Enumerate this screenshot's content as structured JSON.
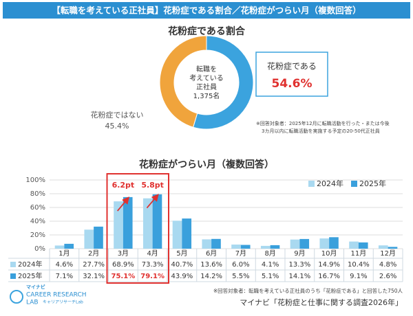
{
  "title": "【転職を考えている正社員】花粉症である割合／花粉症がつらい月（複数回答）",
  "footer_note": "※回答対象者：転職を考えている正社員のうち「花粉症である」と回答した750人",
  "source": "マイナビ「花粉症と仕事に関する調査2026年」",
  "logo": [
    "マイナビ",
    "CAREER RESEARCH",
    "LAB",
    "キャリアリサーチLab"
  ],
  "chart_data": [
    {
      "type": "pie",
      "title": "花粉症である割合",
      "center_label": [
        "転職を",
        "考えている",
        "正社員",
        "1,375名"
      ],
      "categories": [
        "花粉症である",
        "花粉症ではない"
      ],
      "values": [
        54.6,
        45.4
      ],
      "value_labels": [
        "54.6%",
        "45.4%"
      ],
      "colors": [
        "#3ba3de",
        "#f0a43c"
      ],
      "note": [
        "※回答対象者：2025年12月に転職活動を行った・または今後",
        "3カ月以内に転職活動を実施する予定の20-50代正社員"
      ]
    },
    {
      "type": "bar",
      "title": "花粉症がつらい月（複数回答）",
      "categories": [
        "1月",
        "2月",
        "3月",
        "4月",
        "5月",
        "6月",
        "7月",
        "8月",
        "9月",
        "10月",
        "11月",
        "12月"
      ],
      "series": [
        {
          "name": "2024年",
          "color": "#a9d9f0",
          "values": [
            4.6,
            27.7,
            68.9,
            73.3,
            40.7,
            13.6,
            6.0,
            4.1,
            13.3,
            14.9,
            10.4,
            4.8
          ],
          "value_labels": [
            "4.6%",
            "27.7%",
            "68.9%",
            "73.3%",
            "40.7%",
            "13.6%",
            "6.0%",
            "4.1%",
            "13.3%",
            "14.9%",
            "10.4%",
            "4.8%"
          ]
        },
        {
          "name": "2025年",
          "color": "#3aa0dc",
          "values": [
            7.1,
            32.1,
            75.1,
            79.1,
            43.9,
            14.2,
            5.5,
            5.1,
            14.1,
            16.7,
            9.1,
            2.6
          ],
          "value_labels": [
            "7.1%",
            "32.1%",
            "75.1%",
            "79.1%",
            "43.9%",
            "14.2%",
            "5.5%",
            "5.1%",
            "14.1%",
            "16.7%",
            "9.1%",
            "2.6%"
          ]
        }
      ],
      "ylim": [
        0,
        100
      ],
      "yticks": [
        {
          "value": 0,
          "label": "0%"
        },
        {
          "value": 20,
          "label": "20%"
        },
        {
          "value": 40,
          "label": "40%"
        },
        {
          "value": 60,
          "label": "60%"
        },
        {
          "value": 80,
          "label": "80%"
        },
        {
          "value": 100,
          "label": "100%"
        }
      ],
      "grid": true,
      "annotations": [
        {
          "category": "3月",
          "text": "6.2pt"
        },
        {
          "category": "4月",
          "text": "5.8pt"
        }
      ]
    }
  ]
}
